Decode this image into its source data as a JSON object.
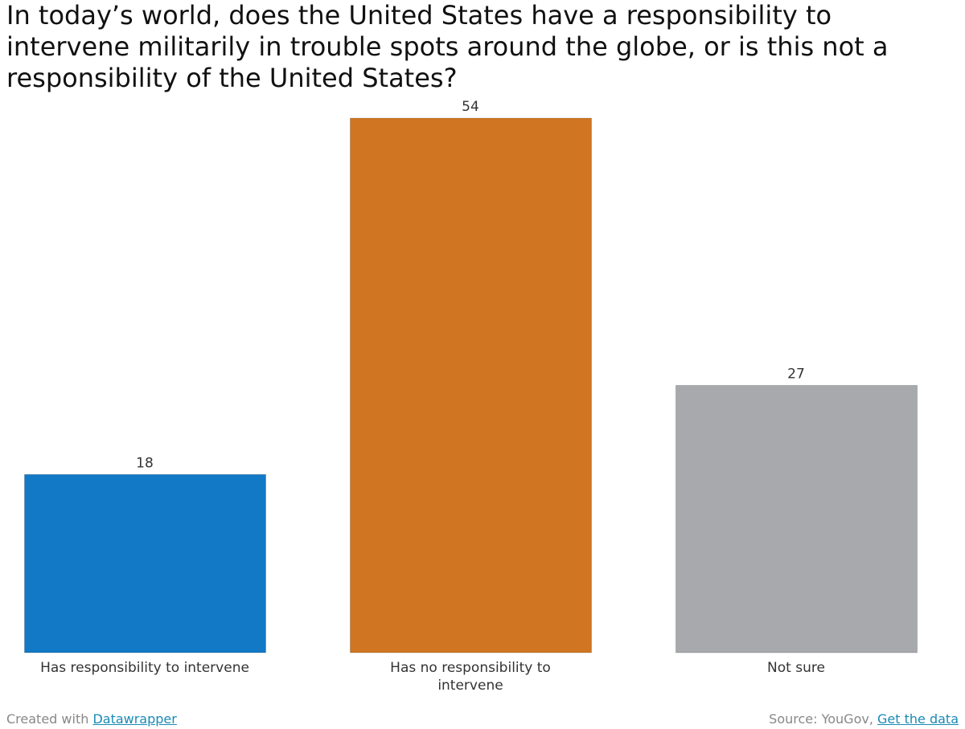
{
  "chart_data": {
    "type": "bar",
    "title": "In today’s world, does the United States have a responsibility to intervene militarily in trouble spots around the globe, or is this not a responsibility of the United States?",
    "categories": [
      "Has responsibility to intervene",
      "Has no responsibility to intervene",
      "Not sure"
    ],
    "values": [
      18,
      54,
      27
    ],
    "colors": [
      "#1179c6",
      "#d07522",
      "#a7a9ac"
    ],
    "ylim": [
      0,
      54
    ],
    "grid": false,
    "data_labels": true
  },
  "footer": {
    "created_prefix": "Created with ",
    "created_link": "Datawrapper",
    "source_prefix": "Source: YouGov, ",
    "source_link": "Get the data"
  }
}
